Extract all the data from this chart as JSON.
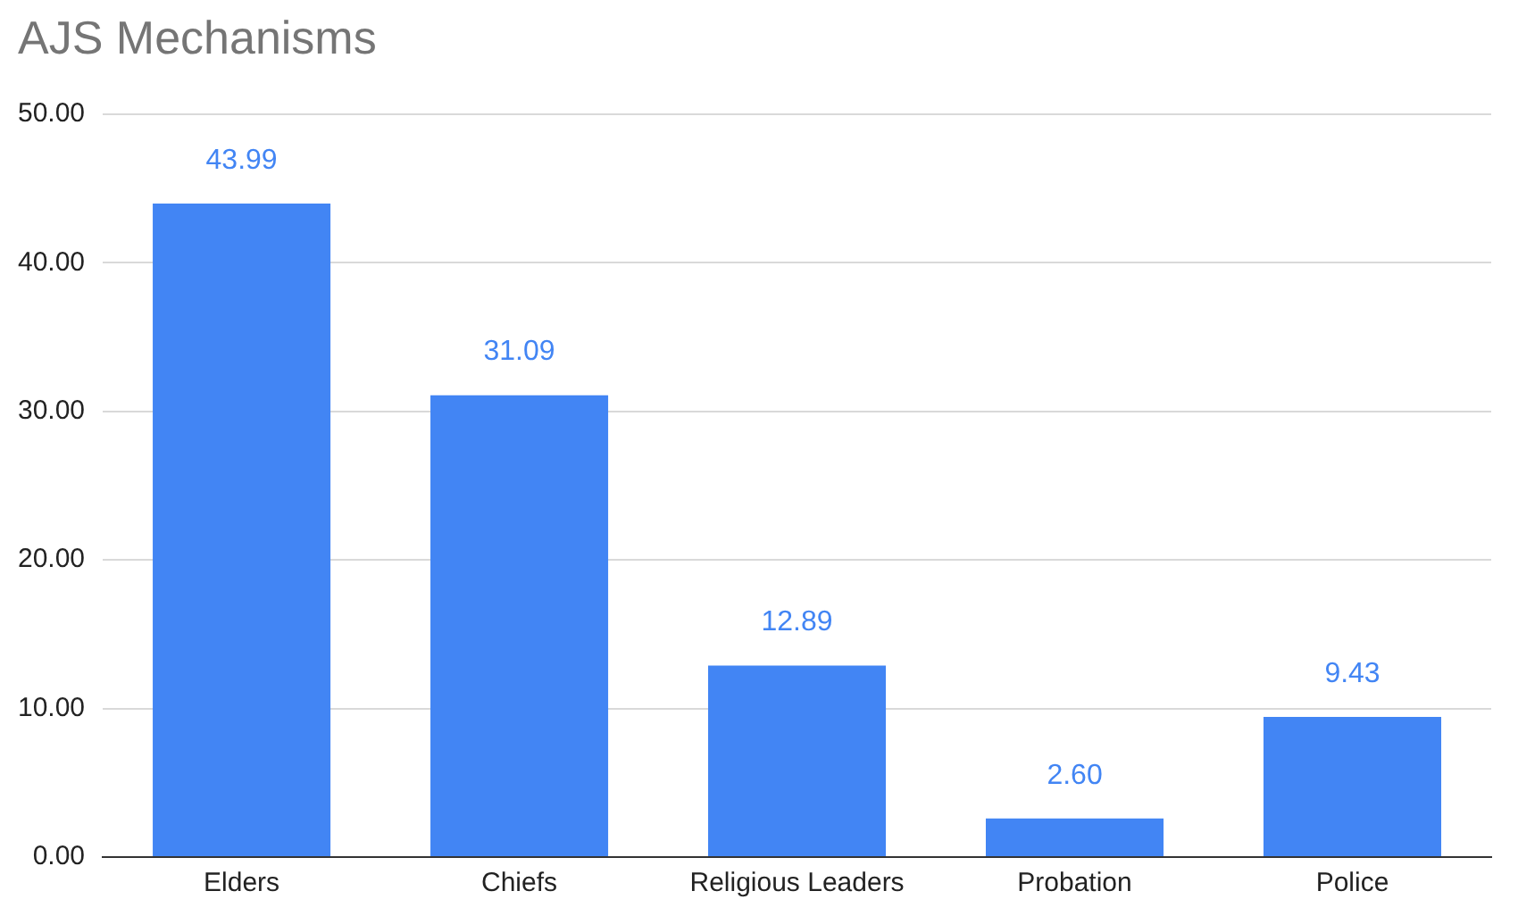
{
  "chart_data": {
    "type": "bar",
    "title": "AJS Mechanisms",
    "categories": [
      "Elders",
      "Chiefs",
      "Religious Leaders",
      "Probation",
      "Police"
    ],
    "values": [
      43.99,
      31.09,
      12.89,
      2.6,
      9.43
    ],
    "value_labels": [
      "43.99",
      "31.09",
      "12.89",
      "2.60",
      "9.43"
    ],
    "color": "#4285f4",
    "ylim": [
      0,
      50
    ],
    "yticks": [
      {
        "value": 0,
        "label": "0.00"
      },
      {
        "value": 10,
        "label": "10.00"
      },
      {
        "value": 20,
        "label": "20.00"
      },
      {
        "value": 30,
        "label": "30.00"
      },
      {
        "value": 40,
        "label": "40.00"
      },
      {
        "value": 50,
        "label": "50.00"
      }
    ],
    "grid": "y",
    "legend": false
  }
}
